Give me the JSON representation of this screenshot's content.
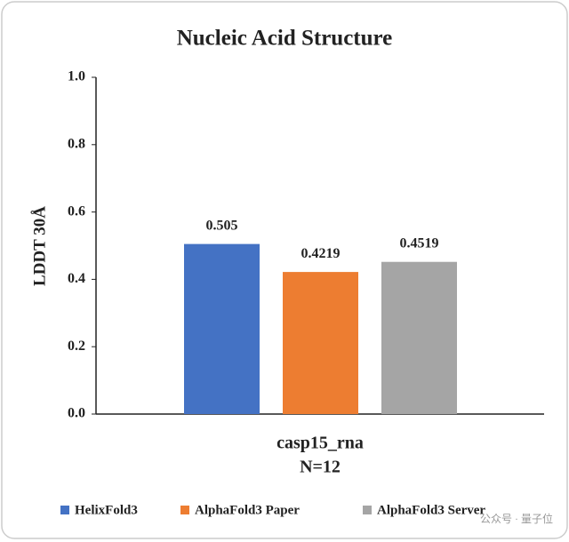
{
  "chart_data": {
    "type": "bar",
    "title": "Nucleic Acid Structure",
    "ylabel": "LDDT 30Å",
    "categories": [
      "casp15_rna"
    ],
    "annotation": "N=12",
    "series": [
      {
        "name": "HelixFold3",
        "color": "#4472c4",
        "values": [
          0.505
        ]
      },
      {
        "name": "AlphaFold3 Paper",
        "color": "#ed7d31",
        "values": [
          0.4219
        ]
      },
      {
        "name": "AlphaFold3 Server",
        "color": "#a5a5a5",
        "values": [
          0.4519
        ]
      }
    ],
    "ylim": [
      0,
      1
    ],
    "yticks": [
      {
        "value": 0,
        "label": "0.0"
      },
      0.2,
      0.4,
      0.6,
      0.8,
      {
        "value": 1,
        "label": "1.0"
      }
    ],
    "legend": "bottom",
    "watermark": "公众号 · 量子位"
  }
}
